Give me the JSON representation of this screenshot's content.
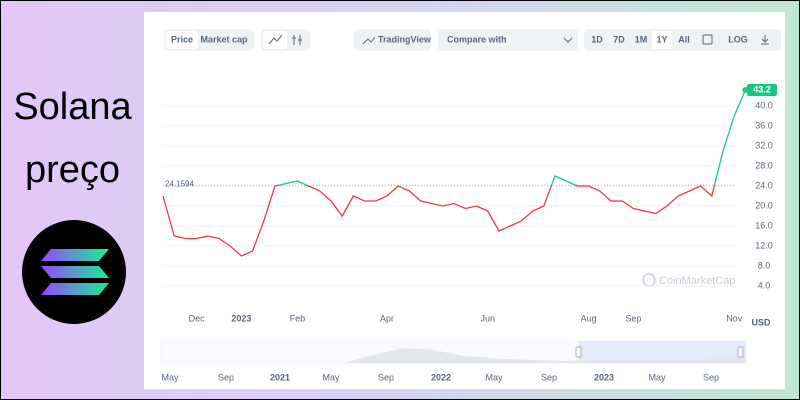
{
  "banner": {
    "line1": "Solana",
    "line2": "preço"
  },
  "toolbar": {
    "price": "Price",
    "market_cap": "Market cap",
    "tradingview": "TradingView",
    "compare": "Compare with",
    "ranges": [
      "1D",
      "7D",
      "1M",
      "1Y",
      "All"
    ],
    "log": "LOG"
  },
  "watermark": "CoinMarketCap",
  "currency": "USD",
  "navigator": {
    "labels": [
      "May",
      "Sep",
      "2021",
      "May",
      "Sep",
      "2022",
      "May",
      "Sep",
      "2023",
      "May",
      "Sep"
    ]
  },
  "chart_data": {
    "type": "line",
    "categories": [
      null,
      null,
      null,
      "Dec",
      null,
      null,
      null,
      "2023",
      null,
      null,
      null,
      null,
      "Feb",
      null,
      null,
      null,
      null,
      null,
      null,
      null,
      "Apr",
      null,
      null,
      null,
      null,
      null,
      null,
      null,
      null,
      "Jun",
      null,
      null,
      null,
      null,
      null,
      null,
      null,
      null,
      "Aug",
      null,
      null,
      null,
      "Sep",
      null,
      null,
      null,
      null,
      null,
      null,
      null,
      null,
      "Nov",
      null
    ],
    "values": [
      22,
      14,
      13.5,
      13.5,
      14,
      13.5,
      12,
      10,
      11,
      17,
      24,
      24.5,
      25,
      24,
      23,
      21,
      18,
      22,
      21,
      21,
      22,
      24,
      23,
      21,
      20.5,
      20,
      20.5,
      19.5,
      20,
      19,
      15,
      16,
      17,
      19,
      20,
      26,
      25,
      24,
      24,
      23,
      21,
      21,
      19.5,
      19,
      18.5,
      20,
      22,
      23,
      24,
      22,
      31,
      38,
      43.2
    ],
    "reference_value": 24.1594,
    "color_above": "#16c784",
    "color_below": "#ea3943",
    "ylim": [
      0,
      47
    ],
    "yticks": [
      {
        "value": 4,
        "label": "4.0"
      },
      {
        "value": 8,
        "label": "8.0"
      },
      {
        "value": 12,
        "label": "12.0"
      },
      {
        "value": 16,
        "label": "16.0"
      },
      {
        "value": 20,
        "label": "20.0"
      },
      {
        "value": 24,
        "label": "24.0"
      },
      {
        "value": 28,
        "label": "28.0"
      },
      {
        "value": 32,
        "label": "32.0"
      },
      {
        "value": 36,
        "label": "36.0"
      },
      {
        "value": 40,
        "label": "40.0"
      }
    ],
    "grid": true
  }
}
